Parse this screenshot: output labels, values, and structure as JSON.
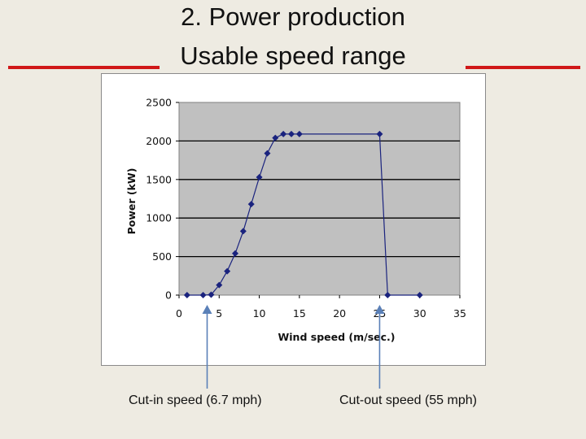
{
  "slide": {
    "title_line1": "2. Power production",
    "title_line2": "Usable speed range",
    "accent_color": "#d01818",
    "arrow_color": "#5a80b8"
  },
  "annotations": {
    "cut_in": {
      "label": "Cut-in speed (6.7 mph)",
      "x": 3.5
    },
    "cut_out": {
      "label": "Cut-out speed (55 mph)",
      "x": 25
    }
  },
  "chart_data": {
    "type": "line",
    "title": "",
    "xlabel": "Wind speed (m/sec.)",
    "ylabel": "Power (kW)",
    "xlim": [
      0,
      35
    ],
    "ylim": [
      0,
      2500
    ],
    "xticks": [
      "0",
      "5",
      "10",
      "15",
      "20",
      "25",
      "30",
      "35"
    ],
    "yticks": [
      "0",
      "500",
      "1000",
      "1500",
      "2000",
      "2500"
    ],
    "grid": true,
    "plot_background": "#c0c0c0",
    "series_color": "#1a237e",
    "series": [
      {
        "points": [
          [
            1,
            0
          ],
          [
            3,
            0
          ],
          [
            4,
            5
          ],
          [
            5,
            130
          ],
          [
            6,
            310
          ],
          [
            7,
            540
          ],
          [
            8,
            830
          ],
          [
            9,
            1180
          ],
          [
            10,
            1530
          ],
          [
            11,
            1840
          ],
          [
            12,
            2040
          ],
          [
            13,
            2090
          ],
          [
            14,
            2090
          ],
          [
            15,
            2090
          ],
          [
            25,
            2090
          ],
          [
            26,
            0
          ],
          [
            30,
            0
          ]
        ]
      }
    ]
  }
}
